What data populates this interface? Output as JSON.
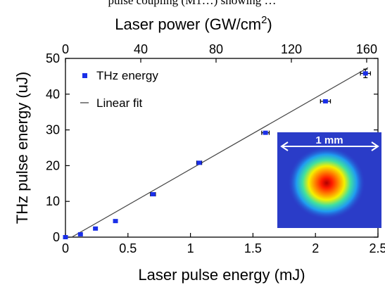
{
  "page": {
    "top_caption": "pulse coupling (M1…) showing …"
  },
  "chart_data": {
    "type": "scatter",
    "xlabel": "Laser pulse energy (mJ)",
    "ylabel": "THz pulse energy (uJ)",
    "top_xlabel_prefix": "Laser power (GW/cm",
    "top_xlabel_sup": "2",
    "top_xlabel_suffix": ")",
    "xlim": [
      0,
      2.5
    ],
    "ylim": [
      0,
      50
    ],
    "xticks": [
      0,
      0.5,
      1,
      1.5,
      2,
      2.5
    ],
    "xtick_labels": [
      "0",
      "0.5",
      "1",
      "1.5",
      "2",
      "2.5"
    ],
    "yticks": [
      0,
      10,
      20,
      30,
      40,
      50
    ],
    "ytick_labels": [
      "0",
      "10",
      "20",
      "30",
      "40",
      "50"
    ],
    "top_xlim": [
      0,
      166
    ],
    "top_xticks": [
      0,
      40,
      80,
      120,
      160
    ],
    "top_xtick_labels": [
      "0",
      "40",
      "80",
      "120",
      "160"
    ],
    "series": [
      {
        "name": "THz energy",
        "color": "#1a2fe8",
        "points": [
          {
            "x": 0.0,
            "y": 0.0
          },
          {
            "x": 0.12,
            "y": 0.8
          },
          {
            "x": 0.24,
            "y": 2.4
          },
          {
            "x": 0.4,
            "y": 4.5
          },
          {
            "x": 0.7,
            "y": 12.0,
            "xerr": 0.02
          },
          {
            "x": 1.07,
            "y": 20.8,
            "xerr": 0.02
          },
          {
            "x": 1.6,
            "y": 29.2,
            "xerr": 0.03
          },
          {
            "x": 2.08,
            "y": 38.0,
            "xerr": 0.04
          },
          {
            "x": 2.4,
            "y": 45.8,
            "xerr": 0.04,
            "yerr": 1.2
          }
        ]
      },
      {
        "name": "Linear fit",
        "type": "line",
        "color": "#444444",
        "x": [
          0.05,
          2.42
        ],
        "y": [
          0.0,
          47.4
        ]
      }
    ],
    "legend": {
      "position": "top-left",
      "entries": [
        "THz energy",
        "Linear fit"
      ]
    },
    "inset": {
      "label": "1 mm",
      "type": "heatmap",
      "background_color": "#2a3cc8",
      "peak_color": "#ff1a00"
    }
  }
}
